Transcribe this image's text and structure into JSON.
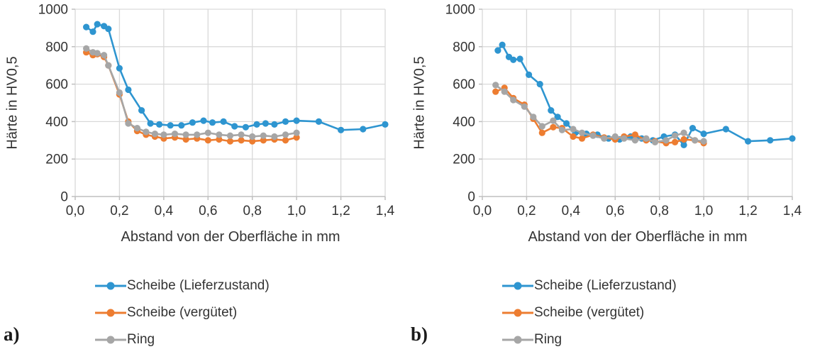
{
  "figure": {
    "background": "#ffffff",
    "text_color": "#333333",
    "grid_color": "#d9d9d9",
    "axis_color": "#bfbfbf",
    "series_colors": {
      "blue": "#2e95d0",
      "orange": "#ed7d31",
      "gray": "#a6a6a6"
    }
  },
  "chart_data": [
    {
      "type": "line",
      "corner_label": "a)",
      "title": "",
      "xlabel": "Abstand von der Oberfläche in mm",
      "ylabel": "Härte in HV0,5",
      "xlim": [
        0,
        1.4
      ],
      "ylim": [
        0,
        1000
      ],
      "grid": true,
      "legend_position": "bottom-left",
      "x_tick_values": [
        0,
        0.2,
        0.4,
        0.6,
        0.8,
        1.0,
        1.2,
        1.4
      ],
      "x_tick_labels": [
        "0,0",
        "0,2",
        "0,4",
        "0,6",
        "0,8",
        "1,0",
        "1,2",
        "1,4"
      ],
      "y_tick_values": [
        0,
        200,
        400,
        600,
        800,
        1000
      ],
      "y_tick_labels": [
        "0",
        "200",
        "400",
        "600",
        "800",
        "1000"
      ],
      "series": [
        {
          "name": "Scheibe (Lieferzustand)",
          "color": "#2e95d0",
          "x": [
            0.05,
            0.08,
            0.1,
            0.13,
            0.15,
            0.2,
            0.24,
            0.3,
            0.34,
            0.38,
            0.43,
            0.48,
            0.53,
            0.58,
            0.62,
            0.67,
            0.72,
            0.77,
            0.82,
            0.86,
            0.9,
            0.95,
            1.0,
            1.1,
            1.2,
            1.3,
            1.4
          ],
          "values": [
            905,
            880,
            920,
            910,
            895,
            685,
            570,
            460,
            390,
            385,
            380,
            380,
            395,
            405,
            395,
            400,
            375,
            370,
            385,
            390,
            385,
            400,
            405,
            400,
            355,
            360,
            385
          ]
        },
        {
          "name": "Scheibe (vergütet)",
          "color": "#ed7d31",
          "x": [
            0.05,
            0.08,
            0.1,
            0.13,
            0.15,
            0.2,
            0.24,
            0.28,
            0.32,
            0.36,
            0.4,
            0.45,
            0.5,
            0.55,
            0.6,
            0.65,
            0.7,
            0.75,
            0.8,
            0.85,
            0.9,
            0.95,
            1.0
          ],
          "values": [
            770,
            755,
            760,
            745,
            700,
            545,
            400,
            350,
            330,
            320,
            310,
            315,
            305,
            310,
            300,
            305,
            295,
            300,
            295,
            300,
            305,
            300,
            315
          ]
        },
        {
          "name": "Ring",
          "color": "#a6a6a6",
          "x": [
            0.05,
            0.08,
            0.1,
            0.13,
            0.15,
            0.2,
            0.24,
            0.28,
            0.32,
            0.36,
            0.4,
            0.45,
            0.5,
            0.55,
            0.6,
            0.65,
            0.7,
            0.75,
            0.8,
            0.85,
            0.9,
            0.95,
            1.0
          ],
          "values": [
            790,
            770,
            765,
            755,
            700,
            555,
            390,
            365,
            345,
            335,
            330,
            335,
            330,
            330,
            340,
            330,
            325,
            330,
            320,
            325,
            320,
            330,
            340
          ]
        }
      ]
    },
    {
      "type": "line",
      "corner_label": "b)",
      "title": "",
      "xlabel": "Abstand von der Oberfläche in mm",
      "ylabel": "Härte in HV0,5",
      "xlim": [
        0,
        1.4
      ],
      "ylim": [
        0,
        1000
      ],
      "grid": true,
      "legend_position": "bottom-left",
      "x_tick_values": [
        0,
        0.2,
        0.4,
        0.6,
        0.8,
        1.0,
        1.2,
        1.4
      ],
      "x_tick_labels": [
        "0,0",
        "0,2",
        "0,4",
        "0,6",
        "0,8",
        "1,0",
        "1,2",
        "1,4"
      ],
      "y_tick_values": [
        0,
        200,
        400,
        600,
        800,
        1000
      ],
      "y_tick_labels": [
        "0",
        "200",
        "400",
        "600",
        "800",
        "1000"
      ],
      "series": [
        {
          "name": "Scheibe (Lieferzustand)",
          "color": "#2e95d0",
          "x": [
            0.07,
            0.09,
            0.12,
            0.14,
            0.17,
            0.21,
            0.26,
            0.31,
            0.34,
            0.38,
            0.42,
            0.47,
            0.52,
            0.57,
            0.62,
            0.67,
            0.72,
            0.77,
            0.82,
            0.87,
            0.91,
            0.95,
            1.0,
            1.1,
            1.2,
            1.3,
            1.4
          ],
          "values": [
            780,
            810,
            745,
            730,
            735,
            650,
            600,
            460,
            425,
            390,
            340,
            335,
            330,
            310,
            305,
            320,
            310,
            300,
            320,
            330,
            275,
            365,
            335,
            360,
            295,
            300,
            310
          ]
        },
        {
          "name": "Scheibe (vergütet)",
          "color": "#ed7d31",
          "x": [
            0.06,
            0.1,
            0.14,
            0.19,
            0.23,
            0.27,
            0.32,
            0.36,
            0.41,
            0.45,
            0.5,
            0.55,
            0.6,
            0.64,
            0.69,
            0.74,
            0.78,
            0.83,
            0.87,
            0.91,
            0.96,
            1.0
          ],
          "values": [
            560,
            580,
            525,
            490,
            415,
            340,
            370,
            365,
            320,
            310,
            330,
            315,
            305,
            320,
            330,
            300,
            295,
            285,
            290,
            305,
            300,
            285
          ]
        },
        {
          "name": "Ring",
          "color": "#a6a6a6",
          "x": [
            0.06,
            0.1,
            0.14,
            0.19,
            0.23,
            0.27,
            0.32,
            0.36,
            0.41,
            0.45,
            0.5,
            0.55,
            0.6,
            0.64,
            0.69,
            0.74,
            0.78,
            0.83,
            0.87,
            0.91,
            0.96,
            1.0
          ],
          "values": [
            595,
            560,
            515,
            480,
            425,
            375,
            405,
            355,
            360,
            340,
            325,
            310,
            320,
            310,
            300,
            310,
            290,
            300,
            325,
            340,
            300,
            295
          ]
        }
      ]
    }
  ]
}
